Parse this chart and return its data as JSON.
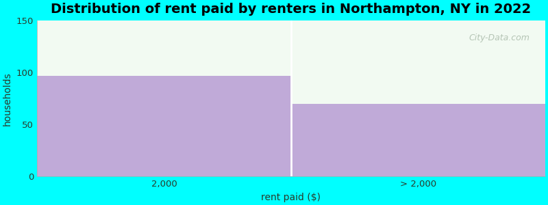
{
  "categories": [
    "2,000",
    "> 2,000"
  ],
  "values": [
    97,
    70
  ],
  "bar_color": "#c0aad8",
  "title": "Distribution of rent paid by renters in Northampton, NY in 2022",
  "xlabel": "rent paid ($)",
  "ylabel": "households",
  "ylim": [
    0,
    150
  ],
  "yticks": [
    0,
    50,
    100,
    150
  ],
  "background_color": "#00ffff",
  "plot_bg_color": "#f2faf2",
  "title_fontsize": 14,
  "label_fontsize": 10,
  "tick_fontsize": 9.5,
  "watermark_text": "City-Data.com",
  "watermark_color": "#aabbaa",
  "divider_color": "#ffffff"
}
